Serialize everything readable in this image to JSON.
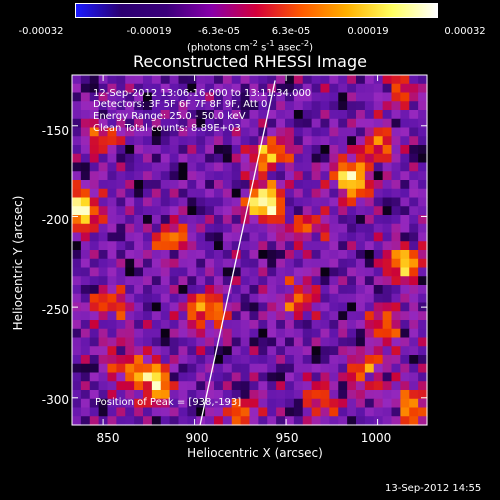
{
  "colorbar": {
    "tick_labels": [
      "-0.00032",
      "-0.00019",
      "-6.3e-05",
      "6.3e-05",
      "0.00019",
      "0.00032"
    ],
    "units_main": "(photons cm",
    "units_sup1": "-2",
    "units_mid1": " s",
    "units_sup2": "-1",
    "units_mid2": " asec",
    "units_sup3": "-2",
    "units_end": ")",
    "colors": [
      "#1a1aff",
      "#2b0070",
      "#3a007a",
      "#8800aa",
      "#d4003a",
      "#ff5a00",
      "#ffb000",
      "#ffff60",
      "#ffffff"
    ]
  },
  "title": "Reconstructed RHESSI Image",
  "info_lines": [
    "12-Sep-2012 13:06:16.000 to 13:11:34.000",
    "Detectors: 3F 5F 6F 7F 8F 9F, Att 0",
    "Energy Range: 25.0 - 50.0 keV",
    "Clean     Total counts: 8.89E+03"
  ],
  "peak_label": "Position of Peak = [938,-193]",
  "timestamp": "13-Sep-2012 14:55",
  "chart_data": {
    "type": "heatmap",
    "title": "Reconstructed RHESSI Image",
    "xlabel": "Heliocentric X (arcsec)",
    "ylabel": "Heliocentric Y (arcsec)",
    "xlim": [
      833,
      1027
    ],
    "ylim": [
      -315,
      -122
    ],
    "x_ticks": [
      850,
      900,
      950,
      1000
    ],
    "y_ticks": [
      -150,
      -200,
      -250,
      -300
    ],
    "x_tick_labels": [
      "850",
      "900",
      "950",
      "1000"
    ],
    "y_tick_labels": [
      "-150",
      "-200",
      "-250",
      "-300"
    ],
    "colorbar_range": [
      -0.00032,
      0.00032
    ],
    "peak_position": [
      938,
      -193
    ],
    "limb_line": [
      [
        903,
        -315
      ],
      [
        944,
        -125
      ]
    ],
    "hotspots": [
      {
        "x": 838,
        "y": -196,
        "v": 0.95
      },
      {
        "x": 877,
        "y": -292,
        "v": 0.9
      },
      {
        "x": 906,
        "y": -253,
        "v": 0.75
      },
      {
        "x": 887,
        "y": -213,
        "v": 0.55
      },
      {
        "x": 938,
        "y": -193,
        "v": 1.0
      },
      {
        "x": 941,
        "y": -166,
        "v": 0.7
      },
      {
        "x": 985,
        "y": -180,
        "v": 0.95
      },
      {
        "x": 1000,
        "y": -160,
        "v": 0.5
      },
      {
        "x": 1015,
        "y": -225,
        "v": 0.75
      },
      {
        "x": 1018,
        "y": -305,
        "v": 0.6
      },
      {
        "x": 995,
        "y": -285,
        "v": 0.55
      },
      {
        "x": 1005,
        "y": -260,
        "v": 0.5
      },
      {
        "x": 955,
        "y": -245,
        "v": 0.5
      },
      {
        "x": 970,
        "y": -300,
        "v": 0.45
      },
      {
        "x": 926,
        "y": -310,
        "v": 0.5
      },
      {
        "x": 850,
        "y": -155,
        "v": 0.45
      },
      {
        "x": 853,
        "y": -250,
        "v": 0.5
      },
      {
        "x": 962,
        "y": -208,
        "v": 0.45
      },
      {
        "x": 862,
        "y": -280,
        "v": 0.5
      },
      {
        "x": 1012,
        "y": -130,
        "v": 0.4
      }
    ]
  }
}
